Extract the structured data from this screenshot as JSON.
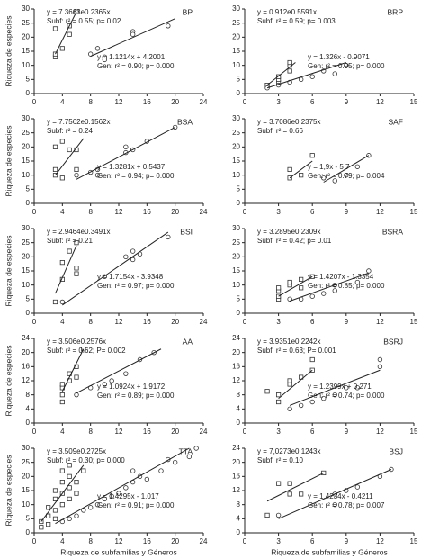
{
  "chart_data": [
    {
      "type": "scatter",
      "title": "BP",
      "ylabel": "Riqueza de especies",
      "xlim": [
        0,
        24
      ],
      "xticks": [
        0,
        4,
        8,
        12,
        16,
        20,
        24
      ],
      "ylim": [
        0,
        30
      ],
      "yticks": [
        0,
        5,
        10,
        15,
        20,
        25,
        30
      ],
      "annotations": [
        "y = 7.3663e0.2365x",
        "Subf: r² = 0.55; p= 0.02",
        "y = 1.1214x + 4.2001",
        "Gen: r² = 0.90; p= 0.000"
      ],
      "series": [
        {
          "marker": "square",
          "x": [
            3,
            3,
            3,
            4,
            5,
            5,
            6
          ],
          "values": [
            13,
            14,
            23,
            16,
            21,
            24,
            29
          ]
        },
        {
          "marker": "circle",
          "x": [
            8,
            9,
            10,
            10,
            14,
            14,
            19
          ],
          "values": [
            14,
            16,
            13,
            12,
            22,
            21,
            24
          ]
        },
        {
          "marker": "line",
          "x": [
            3,
            6
          ],
          "values": [
            14,
            29
          ]
        },
        {
          "marker": "line",
          "x": [
            8,
            20
          ],
          "values": [
            13.2,
            26.6
          ]
        }
      ]
    },
    {
      "type": "scatter",
      "title": "BRP",
      "xlim": [
        0,
        15
      ],
      "xticks": [
        0,
        3,
        6,
        9,
        12,
        15
      ],
      "ylim": [
        0,
        30
      ],
      "yticks": [
        0,
        5,
        10,
        15,
        20,
        25,
        30
      ],
      "annotations": [
        "y = 0.912e0.5591x",
        "Subf: r² = 0.59; p= 0.003",
        "y = 1.326x - 0.9071",
        "Gen: r² = 0.95; p= 0.000"
      ],
      "series": [
        {
          "marker": "square",
          "x": [
            2,
            3,
            3,
            3,
            4,
            4,
            4
          ],
          "values": [
            3,
            4,
            5,
            6,
            8,
            10,
            11
          ]
        },
        {
          "marker": "circle",
          "x": [
            2,
            3,
            4,
            5,
            6,
            7,
            8,
            9
          ],
          "values": [
            2,
            3,
            4,
            5,
            6,
            8,
            7,
            10
          ]
        },
        {
          "marker": "line",
          "x": [
            2,
            4.5
          ],
          "values": [
            3,
            11
          ]
        },
        {
          "marker": "line",
          "x": [
            2,
            9
          ],
          "values": [
            2,
            11
          ]
        }
      ]
    },
    {
      "type": "scatter",
      "title": "BSA",
      "ylabel": "Riqueza de especies",
      "xlim": [
        0,
        24
      ],
      "xticks": [
        0,
        4,
        8,
        12,
        16,
        20,
        24
      ],
      "ylim": [
        0,
        30
      ],
      "yticks": [
        0,
        5,
        10,
        15,
        20,
        25,
        30
      ],
      "annotations": [
        "y = 7.7562e0.1562x",
        "Subf: r² = 0.24",
        "y = 1.3281x + 0.5437",
        "Gen: r² = 0.94; p= 0.000"
      ],
      "series": [
        {
          "marker": "square",
          "x": [
            3,
            3,
            3,
            4,
            4,
            5,
            6,
            6
          ],
          "values": [
            10,
            12,
            20,
            9,
            22,
            19,
            19,
            12
          ]
        },
        {
          "marker": "circle",
          "x": [
            6,
            8,
            9,
            9,
            13,
            13,
            14,
            16,
            20
          ],
          "values": [
            10,
            11,
            10,
            12,
            20,
            18,
            19,
            22,
            27
          ]
        },
        {
          "marker": "line",
          "x": [
            3,
            7
          ],
          "values": [
            10,
            23
          ]
        },
        {
          "marker": "line",
          "x": [
            6,
            20
          ],
          "values": [
            8.5,
            27
          ]
        }
      ]
    },
    {
      "type": "scatter",
      "title": "SAF",
      "xlim": [
        0,
        15
      ],
      "xticks": [
        0,
        3,
        6,
        9,
        12,
        15
      ],
      "ylim": [
        0,
        30
      ],
      "yticks": [
        0,
        5,
        10,
        15,
        20,
        25,
        30
      ],
      "annotations": [
        "y = 3.7086e0.2375x",
        "Subf: r² = 0.66",
        "y = 1,9x - 5 7",
        "Gen: r² = 0.79; p= 0.004"
      ],
      "series": [
        {
          "marker": "square",
          "x": [
            4,
            4,
            5,
            6
          ],
          "values": [
            9,
            12,
            10,
            17
          ]
        },
        {
          "marker": "circle",
          "x": [
            7,
            8,
            9,
            10,
            11
          ],
          "values": [
            9,
            8,
            10,
            13,
            17
          ]
        },
        {
          "marker": "line",
          "x": [
            4,
            6
          ],
          "values": [
            9,
            15
          ]
        },
        {
          "marker": "line",
          "x": [
            7,
            11
          ],
          "values": [
            7.5,
            17
          ]
        }
      ]
    },
    {
      "type": "scatter",
      "title": "BSI",
      "ylabel": "Riqueza de especies",
      "xlim": [
        0,
        24
      ],
      "xticks": [
        0,
        4,
        8,
        12,
        16,
        20,
        24
      ],
      "ylim": [
        0,
        30
      ],
      "yticks": [
        0,
        5,
        10,
        15,
        20,
        25,
        30
      ],
      "annotations": [
        "y = 2.9464e0.3491x",
        "Subf: r² = 0.21",
        "y = 1.7154x - 3.9348",
        "Gen: r² = 0.97; p= 0.000"
      ],
      "series": [
        {
          "marker": "square",
          "x": [
            3,
            4,
            4,
            5,
            6,
            6,
            6
          ],
          "values": [
            4,
            12,
            18,
            22,
            14,
            16,
            25
          ]
        },
        {
          "marker": "circle",
          "x": [
            4,
            10,
            13,
            14,
            14,
            15,
            19
          ],
          "values": [
            4,
            13,
            20,
            19,
            22,
            21,
            27
          ]
        },
        {
          "marker": "line",
          "x": [
            3,
            6
          ],
          "values": [
            7,
            24
          ]
        },
        {
          "marker": "line",
          "x": [
            4,
            19
          ],
          "values": [
            2.9,
            28.7
          ]
        }
      ]
    },
    {
      "type": "scatter",
      "title": "BSRA",
      "xlim": [
        0,
        15
      ],
      "xticks": [
        0,
        3,
        6,
        9,
        12,
        15
      ],
      "ylim": [
        0,
        30
      ],
      "yticks": [
        0,
        5,
        10,
        15,
        20,
        25,
        30
      ],
      "annotations": [
        "y = 3.2895e0.2309x",
        "Subf: r² = 0.42; p= 0.01",
        "y = 1.4207x - 1.3354",
        "Gen: r² = 0.85; p= 0.000"
      ],
      "series": [
        {
          "marker": "square",
          "x": [
            3,
            3,
            3,
            3,
            4,
            4,
            5,
            5,
            6
          ],
          "values": [
            5,
            6,
            8,
            9,
            10,
            11,
            12,
            9,
            13
          ]
        },
        {
          "marker": "circle",
          "x": [
            4,
            5,
            6,
            7,
            8,
            8,
            10,
            11
          ],
          "values": [
            5,
            5,
            6,
            7,
            8,
            10,
            11,
            15
          ]
        },
        {
          "marker": "line",
          "x": [
            3,
            6
          ],
          "values": [
            6,
            13
          ]
        },
        {
          "marker": "line",
          "x": [
            4,
            11
          ],
          "values": [
            4.3,
            14.3
          ]
        }
      ]
    },
    {
      "type": "scatter",
      "title": "AA",
      "ylabel": "Riqueza de especies",
      "xlim": [
        0,
        24
      ],
      "xticks": [
        0,
        4,
        8,
        12,
        16,
        20,
        24
      ],
      "ylim": [
        0,
        24
      ],
      "yticks": [
        0,
        4,
        8,
        12,
        16,
        20,
        24
      ],
      "annotations": [
        "y = 3.506e0.2576x",
        "Subf: r² = 0.62; P= 0.002",
        "y = 1.0924x + 1.9172",
        "Gen: r² = 0.89; p= 0.000"
      ],
      "series": [
        {
          "marker": "square",
          "x": [
            4,
            4,
            4,
            4,
            5,
            5,
            6,
            6,
            7
          ],
          "values": [
            6,
            8,
            10,
            11,
            12,
            14,
            13,
            16,
            21
          ]
        },
        {
          "marker": "circle",
          "x": [
            6,
            8,
            10,
            11,
            13,
            15,
            17
          ],
          "values": [
            8,
            10,
            11,
            12,
            14,
            18,
            20
          ]
        },
        {
          "marker": "line",
          "x": [
            4,
            7
          ],
          "values": [
            9,
            21
          ]
        },
        {
          "marker": "line",
          "x": [
            6,
            18
          ],
          "values": [
            8.5,
            21
          ]
        }
      ]
    },
    {
      "type": "scatter",
      "title": "BSRJ",
      "xlim": [
        0,
        15
      ],
      "xticks": [
        0,
        3,
        6,
        9,
        12,
        15
      ],
      "ylim": [
        0,
        24
      ],
      "yticks": [
        0,
        4,
        8,
        12,
        16,
        20,
        24
      ],
      "annotations": [
        "y = 3.9351e0.2242x",
        "Subf: r² = 0.63; P= 0.001",
        "y = 1.2399x + 0.271",
        "Gen: r² = 0.74; p= 0.000"
      ],
      "series": [
        {
          "marker": "square",
          "x": [
            2,
            3,
            3,
            4,
            4,
            5,
            6,
            6
          ],
          "values": [
            9,
            6,
            8,
            11,
            12,
            13,
            15,
            18
          ]
        },
        {
          "marker": "circle",
          "x": [
            4,
            5,
            6,
            7,
            8,
            9,
            10,
            12,
            12
          ],
          "values": [
            4,
            5,
            6,
            7,
            8,
            10,
            10,
            16,
            18
          ]
        },
        {
          "marker": "line",
          "x": [
            3,
            6
          ],
          "values": [
            7,
            15
          ]
        },
        {
          "marker": "line",
          "x": [
            4,
            12
          ],
          "values": [
            5,
            15
          ]
        }
      ]
    },
    {
      "type": "scatter",
      "title": "TTA",
      "ylabel": "Riqueza de especies",
      "xlabel": "Riqueza de subfamilias y Géneros",
      "xlim": [
        0,
        24
      ],
      "xticks": [
        0,
        4,
        8,
        12,
        16,
        20,
        24
      ],
      "ylim": [
        0,
        30
      ],
      "yticks": [
        0,
        5,
        10,
        15,
        20,
        25,
        30
      ],
      "annotations": [
        "y = 3.509e0.2725x",
        "Subf: r² = 0.30; p= 0.000",
        "y = 1.4295x - 1.017",
        "Gen: r² = 0.91; p= 0.000"
      ],
      "series": [
        {
          "marker": "square",
          "x": [
            1,
            1,
            2,
            2,
            2,
            3,
            3,
            3,
            3,
            4,
            4,
            4,
            4,
            5,
            5,
            5,
            5,
            6,
            6,
            7
          ],
          "values": [
            2,
            4,
            3,
            6,
            9,
            5,
            8,
            12,
            15,
            10,
            14,
            18,
            22,
            12,
            16,
            20,
            24,
            14,
            18,
            22
          ]
        },
        {
          "marker": "circle",
          "x": [
            4,
            5,
            6,
            7,
            8,
            9,
            10,
            11,
            12,
            13,
            14,
            14,
            15,
            16,
            18,
            19,
            20,
            22,
            23
          ],
          "values": [
            4,
            5,
            6,
            8,
            9,
            10,
            12,
            13,
            14,
            16,
            18,
            22,
            20,
            19,
            22,
            26,
            25,
            27,
            30
          ]
        },
        {
          "marker": "line",
          "x": [
            1,
            7
          ],
          "values": [
            4,
            24
          ]
        },
        {
          "marker": "line",
          "x": [
            3,
            22
          ],
          "values": [
            3.3,
            30
          ]
        }
      ]
    },
    {
      "type": "scatter",
      "title": "BSJ",
      "xlabel": "Riqueza de subfamilias y Géneros",
      "xlim": [
        0,
        15
      ],
      "xticks": [
        0,
        3,
        6,
        9,
        12,
        15
      ],
      "ylim": [
        0,
        24
      ],
      "yticks": [
        0,
        4,
        8,
        12,
        16,
        20,
        24
      ],
      "annotations": [
        "y = 7,0273e0.1243x",
        "Subf: r² = 0.10",
        "y = 1.4234x - 0.4211",
        "Gen: r² = 0.78; p= 0.007"
      ],
      "series": [
        {
          "marker": "square",
          "x": [
            2,
            3,
            4,
            4,
            5,
            7
          ],
          "values": [
            5,
            14,
            14,
            11,
            11,
            17
          ]
        },
        {
          "marker": "circle",
          "x": [
            3,
            8,
            8,
            9,
            10,
            12,
            13
          ],
          "values": [
            5,
            8,
            11,
            12,
            13,
            16,
            18
          ]
        },
        {
          "marker": "line",
          "x": [
            2,
            7
          ],
          "values": [
            9,
            17
          ]
        },
        {
          "marker": "line",
          "x": [
            3,
            13
          ],
          "values": [
            4,
            18
          ]
        }
      ]
    }
  ]
}
